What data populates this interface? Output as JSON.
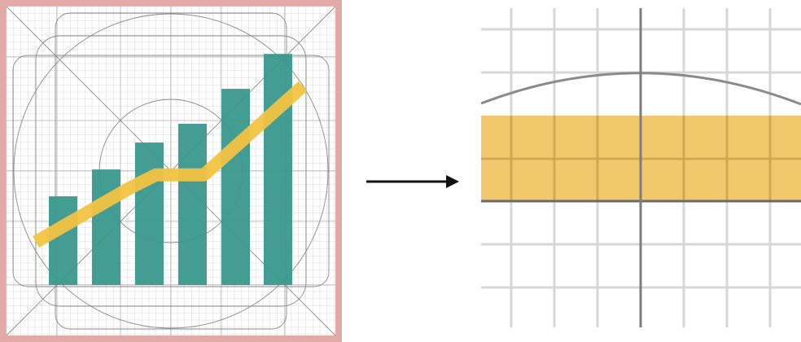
{
  "colors": {
    "border": "#e2aaa6",
    "fine_grid": "#dcdcdc",
    "keyline": "#8a8a8a",
    "bar": "#3a988c",
    "trend": "#f2c342",
    "zoom_fill": "#f0c35e",
    "zoom_grid": "#d7d7d7",
    "zoom_axis": "#7d7d7d",
    "arrow": "#111111"
  },
  "icon": {
    "bars": [
      {
        "value": 33
      },
      {
        "value": 43
      },
      {
        "value": 53
      },
      {
        "value": 60
      },
      {
        "value": 73
      },
      {
        "value": 86
      }
    ],
    "trend_line": [
      {
        "x": 0.0,
        "y": 16
      },
      {
        "x": 0.35,
        "y": 36
      },
      {
        "x": 0.45,
        "y": 41
      },
      {
        "x": 0.63,
        "y": 41
      },
      {
        "x": 1.0,
        "y": 74
      }
    ]
  },
  "arrow": {
    "icon": "right-arrow-icon"
  }
}
